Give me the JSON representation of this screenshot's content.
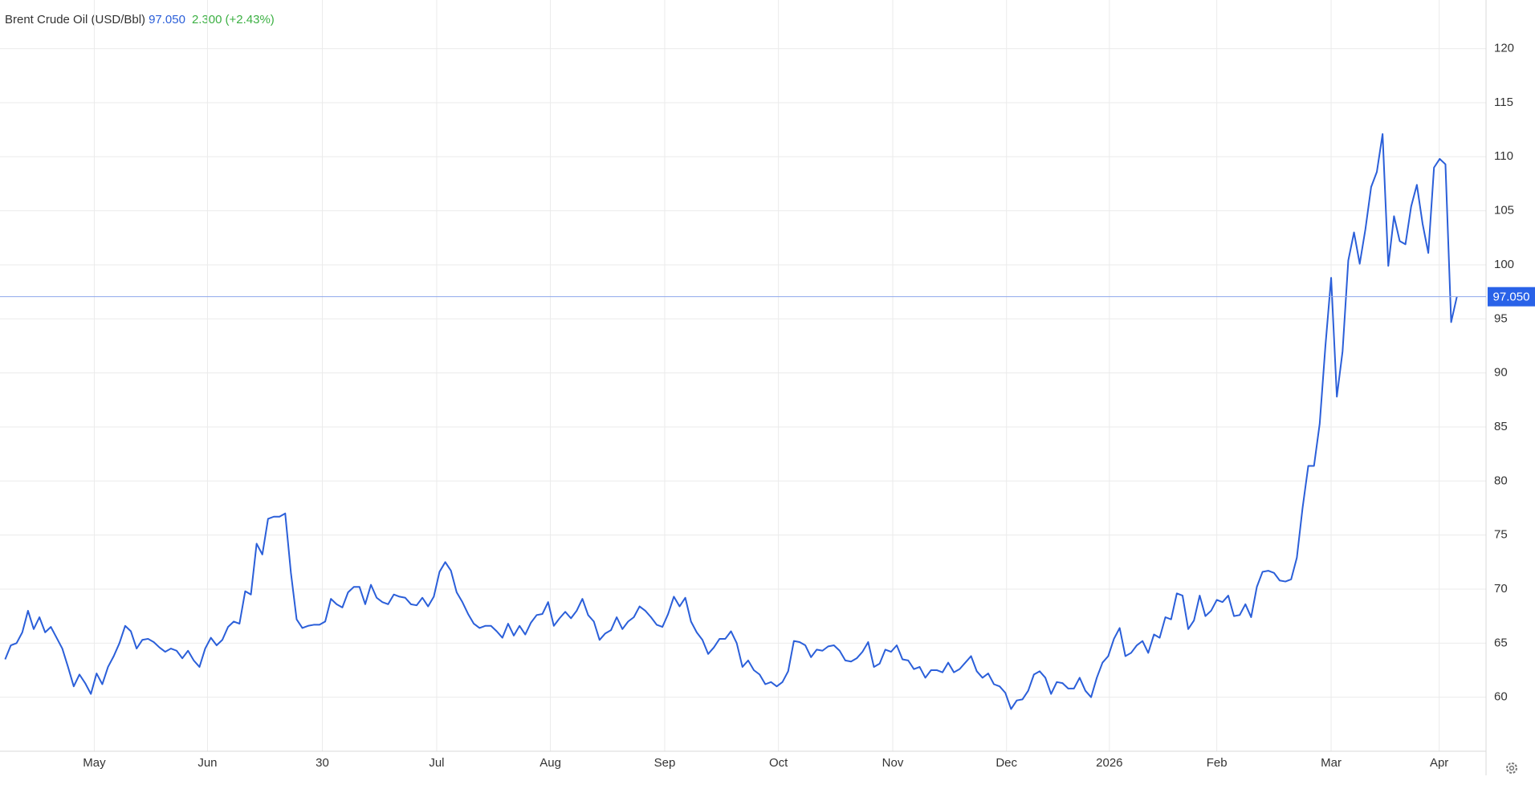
{
  "chart_data": {
    "type": "line",
    "title": "Brent Crude Oil (USD/Bbl)",
    "price": "97.050",
    "change": "2.300",
    "change_percent": "(+2.43%)",
    "last_price": {
      "value": 97.05,
      "label": "97.050"
    },
    "series": [
      {
        "name": "Brent Crude Oil (USD/Bbl)",
        "color": "#2b5fd9",
        "values": [
          63.5,
          64.8,
          65,
          66,
          68,
          66.3,
          67.4,
          66,
          66.5,
          65.5,
          64.5,
          62.8,
          61,
          62.1,
          61.3,
          60.3,
          62.2,
          61.2,
          62.8,
          63.8,
          65,
          66.6,
          66.1,
          64.5,
          65.3,
          65.4,
          65.1,
          64.6,
          64.2,
          64.5,
          64.3,
          63.6,
          64.3,
          63.4,
          62.8,
          64.5,
          65.5,
          64.8,
          65.3,
          66.5,
          67,
          66.8,
          69.8,
          69.5,
          74.2,
          73.2,
          76.5,
          76.7,
          76.7,
          77,
          71.5,
          67.2,
          66.4,
          66.6,
          66.7,
          66.7,
          67,
          69.1,
          68.6,
          68.3,
          69.7,
          70.2,
          70.2,
          68.6,
          70.4,
          69.2,
          68.8,
          68.6,
          69.5,
          69.3,
          69.2,
          68.6,
          68.5,
          69.2,
          68.4,
          69.3,
          71.6,
          72.5,
          71.7,
          69.7,
          68.8,
          67.7,
          66.8,
          66.4,
          66.6,
          66.6,
          66.1,
          65.5,
          66.8,
          65.7,
          66.6,
          65.8,
          66.9,
          67.6,
          67.7,
          68.8,
          66.6,
          67.3,
          67.9,
          67.3,
          68,
          69.1,
          67.6,
          67,
          65.3,
          65.9,
          66.2,
          67.4,
          66.3,
          67,
          67.4,
          68.4,
          68,
          67.4,
          66.7,
          66.5,
          67.7,
          69.3,
          68.4,
          69.2,
          67,
          66,
          65.3,
          64,
          64.6,
          65.4,
          65.4,
          66.1,
          65,
          62.8,
          63.4,
          62.5,
          62.1,
          61.2,
          61.4,
          61,
          61.4,
          62.4,
          65.2,
          65.1,
          64.8,
          63.7,
          64.4,
          64.3,
          64.7,
          64.8,
          64.3,
          63.4,
          63.3,
          63.6,
          64.2,
          65.1,
          62.8,
          63.1,
          64.4,
          64.2,
          64.8,
          63.5,
          63.4,
          62.6,
          62.8,
          61.8,
          62.5,
          62.5,
          62.3,
          63.2,
          62.3,
          62.6,
          63.2,
          63.8,
          62.4,
          61.8,
          62.2,
          61.2,
          61,
          60.4,
          58.9,
          59.7,
          59.8,
          60.6,
          62.1,
          62.4,
          61.8,
          60.3,
          61.4,
          61.3,
          60.8,
          60.8,
          61.8,
          60.6,
          60,
          61.8,
          63.2,
          63.8,
          65.4,
          66.4,
          63.8,
          64.1,
          64.8,
          65.2,
          64.1,
          65.8,
          65.5,
          67.4,
          67.2,
          69.6,
          69.4,
          66.3,
          67.1,
          69.4,
          67.5,
          68,
          69,
          68.8,
          69.4,
          67.5,
          67.6,
          68.6,
          67.4,
          70.2,
          71.6,
          71.7,
          71.5,
          70.8,
          70.7,
          70.9,
          72.9,
          77.5,
          81.4,
          81.4,
          85.3,
          92.5,
          98.8,
          87.8,
          92,
          100.4,
          103,
          100.1,
          103.3,
          107.2,
          108.6,
          112.1,
          99.9,
          104.5,
          102.2,
          101.9,
          105.4,
          107.4,
          103.8,
          101.1,
          109,
          109.8,
          109.3,
          94.7,
          97.05
        ]
      }
    ],
    "xlim": [
      -0.9,
      259.1
    ],
    "xticks": [
      {
        "value": 15.6,
        "label": "May"
      },
      {
        "value": 35.4,
        "label": "Jun"
      },
      {
        "value": 55.5,
        "label": "30"
      },
      {
        "value": 75.5,
        "label": "Jul"
      },
      {
        "value": 95.4,
        "label": "Aug"
      },
      {
        "value": 115.4,
        "label": "Sep"
      },
      {
        "value": 135.3,
        "label": "Oct"
      },
      {
        "value": 155.3,
        "label": "Nov"
      },
      {
        "value": 175.2,
        "label": "Dec"
      },
      {
        "value": 193.2,
        "label": "2026"
      },
      {
        "value": 212,
        "label": "Feb"
      },
      {
        "value": 232,
        "label": "Mar"
      },
      {
        "value": 250.9,
        "label": "Apr"
      }
    ],
    "ylim": [
      55,
      124.5
    ],
    "yticks": [
      60,
      65,
      70,
      75,
      80,
      85,
      90,
      95,
      100,
      105,
      110,
      115,
      120
    ],
    "grid": true
  }
}
